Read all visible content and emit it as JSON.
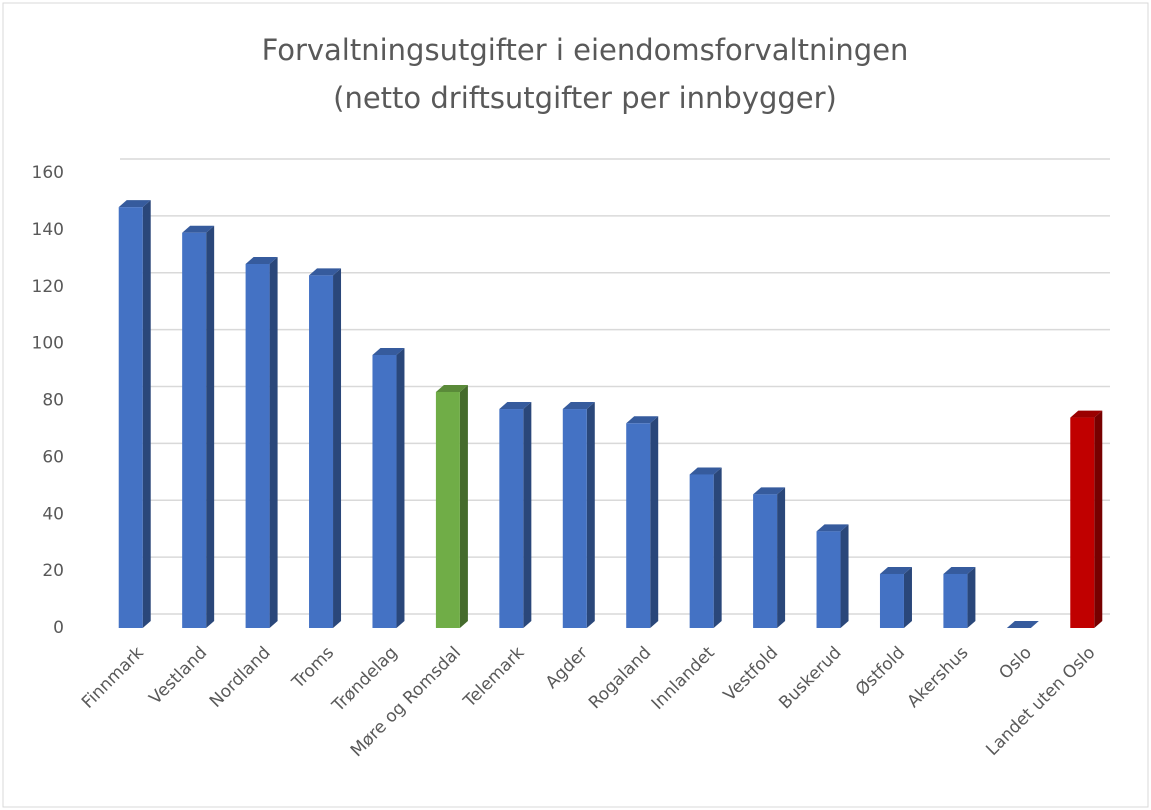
{
  "chart_data": {
    "type": "bar",
    "title": "Forvaltningsutgifter i eiendomsforvaltningen",
    "subtitle": "(netto driftsutgifter per innbygger)",
    "categories": [
      "Finnmark",
      "Vestland",
      "Nordland",
      "Troms",
      "Trøndelag",
      "Møre og Romsdal",
      "Telemark",
      "Agder",
      "Rogaland",
      "Innlandet",
      "Vestfold",
      "Buskerud",
      "Østfold",
      "Akershus",
      "Oslo",
      "Landet uten Oslo"
    ],
    "values": [
      148,
      139,
      128,
      124,
      96,
      83,
      77,
      77,
      72,
      54,
      47,
      34,
      19,
      19,
      0,
      74
    ],
    "colors": [
      "#4472c4",
      "#4472c4",
      "#4472c4",
      "#4472c4",
      "#4472c4",
      "#70ad47",
      "#4472c4",
      "#4472c4",
      "#4472c4",
      "#4472c4",
      "#4472c4",
      "#4472c4",
      "#4472c4",
      "#4472c4",
      "#4472c4",
      "#c00000"
    ],
    "ylim": [
      0,
      160
    ],
    "yticks": [
      0,
      20,
      40,
      60,
      80,
      100,
      120,
      140,
      160
    ],
    "grid": true
  }
}
